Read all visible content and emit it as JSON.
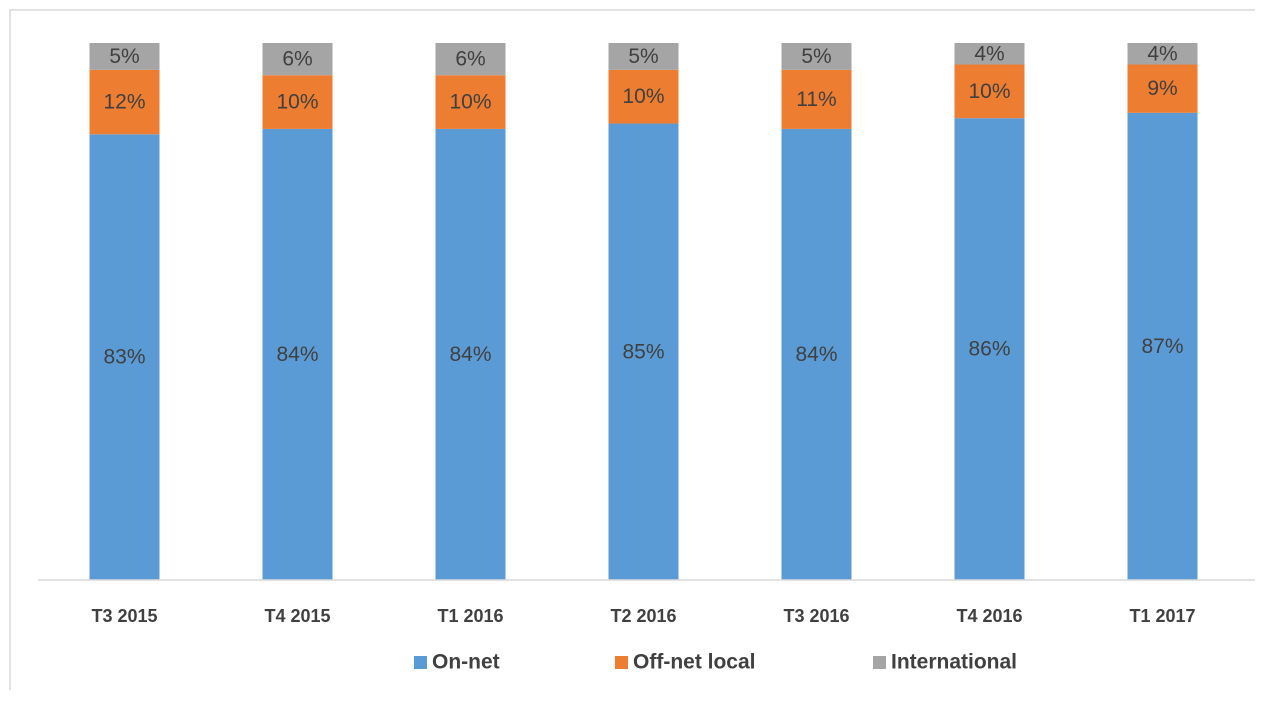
{
  "chart_data": {
    "type": "stacked_bar",
    "categories": [
      "T3 2015",
      "T4 2015",
      "T1 2016",
      "T2 2016",
      "T3 2016",
      "T4 2016",
      "T1 2017"
    ],
    "series": [
      {
        "name": "On-net",
        "color": "#5b9bd5",
        "values": [
          83,
          84,
          84,
          85,
          84,
          86,
          87
        ],
        "value_labels": [
          "83%",
          "84%",
          "84%",
          "85%",
          "84%",
          "86%",
          "87%"
        ]
      },
      {
        "name": "Off-net local",
        "color": "#ed7d31",
        "values": [
          12,
          10,
          10,
          10,
          11,
          10,
          9
        ],
        "value_labels": [
          "12%",
          "10%",
          "10%",
          "10%",
          "11%",
          "10%",
          "9%"
        ]
      },
      {
        "name": "International",
        "color": "#a5a5a5",
        "values": [
          5,
          6,
          6,
          5,
          5,
          4,
          4
        ],
        "value_labels": [
          "5%",
          "6%",
          "6%",
          "5%",
          "5%",
          "4%",
          "4%"
        ]
      }
    ],
    "ylim": [
      0,
      100
    ],
    "legend": "bottom"
  }
}
